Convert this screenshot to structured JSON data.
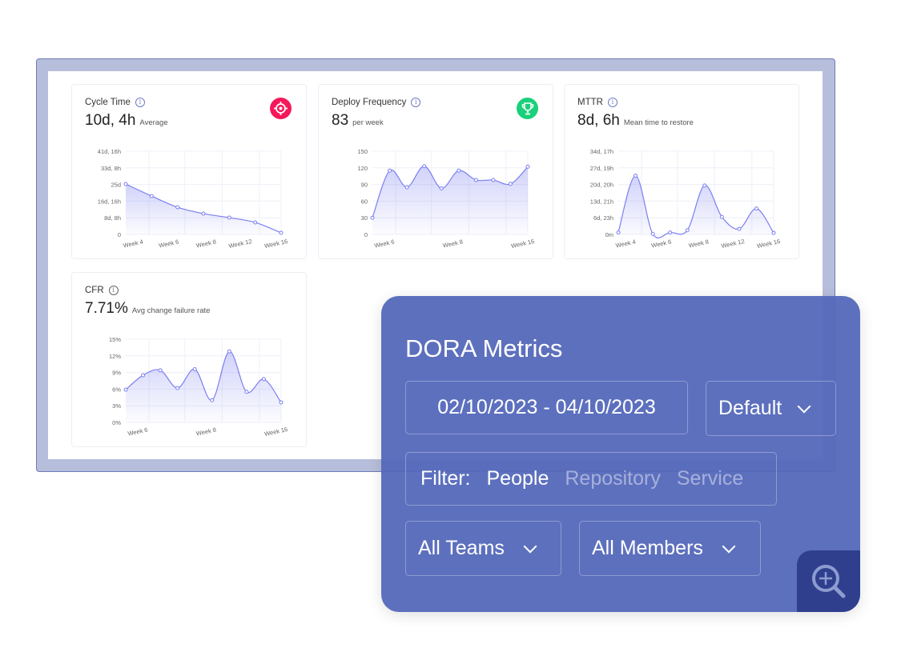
{
  "cards": [
    {
      "title": "Cycle Time",
      "value": "10d, 4h",
      "sub": "Average",
      "icon": "target-icon",
      "icon_color": "#f5185a"
    },
    {
      "title": "Deploy Frequency",
      "value": "83",
      "sub": "per week",
      "icon": "trophy-icon",
      "icon_color": "#19d17a"
    },
    {
      "title": "MTTR",
      "value": "8d, 6h",
      "sub": "Mean time to restore"
    },
    {
      "title": "CFR",
      "value": "7.71%",
      "sub": "Avg change failure rate"
    }
  ],
  "chart_data": [
    {
      "type": "area",
      "ylim": [
        0,
        41.67
      ],
      "y_ticks": [
        "0",
        "8d, 8h",
        "16d, 16h",
        "25d",
        "33d, 8h",
        "41d, 16h"
      ],
      "x_ticks": [
        "Week 4",
        "Week 6",
        "Week 8",
        "Week 12",
        "Week 16"
      ],
      "values_days": [
        25.2,
        19.2,
        13.6,
        10.4,
        8.4,
        6,
        0.8
      ]
    },
    {
      "type": "area",
      "ylim": [
        0,
        150
      ],
      "y_ticks": [
        "0",
        "30",
        "60",
        "90",
        "120",
        "150"
      ],
      "x_ticks": [
        "Week 6",
        "Week 8",
        "Week 16"
      ],
      "values": [
        30,
        115,
        85,
        123,
        83,
        115,
        98,
        98,
        91,
        122
      ]
    },
    {
      "type": "area",
      "ylim": [
        0,
        34.7
      ],
      "y_ticks": [
        "0m",
        "6d, 23h",
        "13d, 21h",
        "20d, 20h",
        "27d, 19h",
        "34d, 17h"
      ],
      "x_ticks": [
        "Week 4",
        "Week 6",
        "Week 8",
        "Week 12",
        "Week 16"
      ],
      "values_days": [
        0.8,
        24.5,
        0.2,
        0.8,
        1.7,
        20.4,
        7.3,
        2.3,
        10.8,
        0.6
      ]
    },
    {
      "type": "area",
      "ylim": [
        0,
        15
      ],
      "y_ticks": [
        "0%",
        "3%",
        "6%",
        "9%",
        "12%",
        "15%"
      ],
      "x_ticks": [
        "Week 6",
        "Week 8",
        "Week 16"
      ],
      "values": [
        5.9,
        8.5,
        9.4,
        6.2,
        9.6,
        4.0,
        12.8,
        5.5,
        7.8,
        3.6
      ]
    }
  ],
  "panel": {
    "title": "DORA Metrics",
    "date_range": "02/10/2023 - 04/10/2023",
    "preset": "Default",
    "filter_label": "Filter:",
    "filters": [
      {
        "label": "People",
        "active": true
      },
      {
        "label": "Repository",
        "active": false
      },
      {
        "label": "Service",
        "active": false
      }
    ],
    "teams": "All Teams",
    "members": "All Members",
    "zoom_icon": "zoom-in-icon"
  },
  "colors": {
    "line": "#7b7ff0",
    "panel": "#5468ba",
    "zoom_button": "#2f3f8e"
  }
}
